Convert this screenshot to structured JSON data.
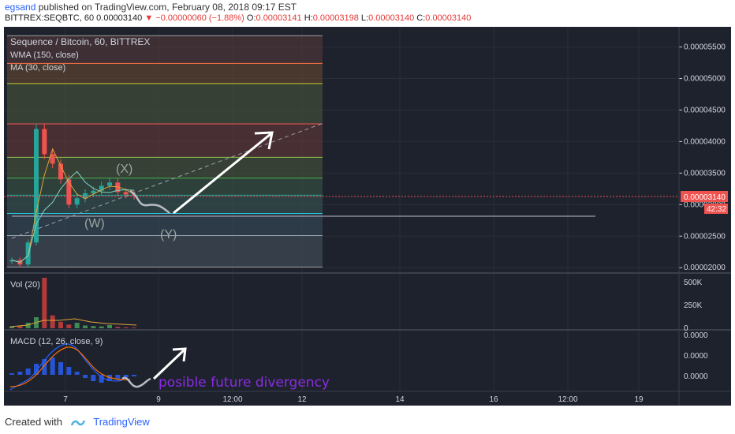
{
  "header": {
    "author": "egsand",
    "published": "published on TradingView.com, February 08, 2018 09:17 EST",
    "symbol": "BITTREX:SEQBTC, 60",
    "price": "0.00003140",
    "change": "▼ −0.00000060 (−1.88%)",
    "o_label": "O:",
    "o_value": "0.00003141",
    "h_label": "H:",
    "h_value": "0.00003198",
    "l_label": "L:",
    "l_value": "0.00003140",
    "c_label": "C:",
    "c_value": "0.00003140"
  },
  "colors": {
    "background": "#1e222d",
    "up": "#26a69a",
    "down": "#ef5350",
    "ma": "#e0a33a",
    "wma": "#7fd3c2",
    "macd": "#2962ff",
    "signal": "#ff6d00",
    "annotation": "#8a2be2"
  },
  "chart_data": [
    {
      "type": "candlestick",
      "title": "Sequence / Bitcoin, 60, BITTREX",
      "indicators": [
        "WMA (150, close)",
        "MA (30, close)"
      ],
      "y_ticks": [
        "0.00005500",
        "0.00005000",
        "0.00004500",
        "0.00004000",
        "0.00003500",
        "0.00003000",
        "0.00002500",
        "0.00002000"
      ],
      "ylim": [
        1.99e-05,
        5.72e-05
      ],
      "x_ticks": [
        "7",
        "9",
        "12:00",
        "12",
        "14",
        "16",
        "12:00",
        "19"
      ],
      "last_price": "0.00003140",
      "countdown": "42:32",
      "approx_series": {
        "x": [
          "6 12:00",
          "6 15:00",
          "6 18:00",
          "6 21:00",
          "7 00:00",
          "7 03:00",
          "7 06:00",
          "7 09:00",
          "7 12:00",
          "7 15:00",
          "7 18:00",
          "7 21:00",
          "8 00:00",
          "8 03:00",
          "8 06:00",
          "8 09:00"
        ],
        "close": [
          2.12e-05,
          2.05e-05,
          2.4e-05,
          4.2e-05,
          3.8e-05,
          3.65e-05,
          3.4e-05,
          3e-05,
          3.1e-05,
          3.18e-05,
          3.22e-05,
          3.3e-05,
          3.35e-05,
          3.2e-05,
          3.16e-05,
          3.14e-05
        ]
      },
      "fib_levels": [
        5.68e-05,
        5.24e-05,
        4.92e-05,
        4.28e-05,
        3.75e-05,
        3.42e-05,
        3.15e-05,
        2.86e-05,
        2.51e-05,
        2.01e-05
      ],
      "annotations": {
        "w": "(W)",
        "x": "(X)",
        "y": "(Y)"
      }
    },
    {
      "type": "bar",
      "title": "Vol (20)",
      "y_ticks": [
        "500K",
        "250K",
        "0"
      ],
      "ylim": [
        0,
        550000
      ],
      "approx_values": [
        20000,
        30000,
        60000,
        120000,
        560000,
        140000,
        70000,
        40000,
        60000,
        30000,
        25000,
        20000,
        35000,
        15000,
        10000,
        8000
      ]
    },
    {
      "type": "line",
      "title": "MACD (12, 26, close, 9)",
      "y_ticks": [
        "0.0000",
        "0.0000",
        "0.0000"
      ],
      "annotation": "posible future divergency"
    }
  ],
  "footer": {
    "created_with": "Created with",
    "brand": "TradingView"
  }
}
